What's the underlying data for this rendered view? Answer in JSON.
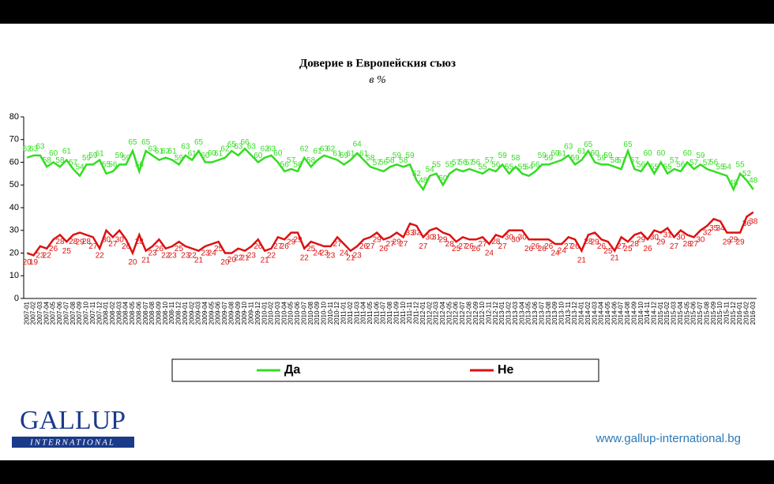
{
  "chart_data": {
    "type": "line",
    "title": "Доверие в Европейския съюз",
    "subtitle": "в %",
    "categories": [
      "2007-01",
      "2007-02",
      "2007-03",
      "2007-04",
      "2007-05",
      "2007-06",
      "2007-07",
      "2007-08",
      "2007-09",
      "2007-10",
      "2007-11",
      "2007-12",
      "2008-01",
      "2008-02",
      "2008-03",
      "2008-04",
      "2008-05",
      "2008-06",
      "2008-07",
      "2008-08",
      "2008-09",
      "2008-10",
      "2008-11",
      "2008-12",
      "2009-01",
      "2009-02",
      "2009-03",
      "2009-04",
      "2009-05",
      "2009-06",
      "2009-07",
      "2009-08",
      "2009-09",
      "2009-10",
      "2009-11",
      "2009-12",
      "2010-01",
      "2010-02",
      "2010-03",
      "2010-04",
      "2010-05",
      "2010-06",
      "2010-07",
      "2010-08",
      "2010-09",
      "2010-10",
      "2010-11",
      "2010-12",
      "2011-01",
      "2011-02",
      "2011-03",
      "2011-04",
      "2011-05",
      "2011-06",
      "2011-07",
      "2011-08",
      "2011-09",
      "2011-10",
      "2011-11",
      "2011-12",
      "2012-01",
      "2012-02",
      "2012-03",
      "2012-04",
      "2012-05",
      "2012-06",
      "2012-07",
      "2012-08",
      "2012-09",
      "2012-10",
      "2012-11",
      "2012-12",
      "2013-01",
      "2013-02",
      "2013-03",
      "2013-04",
      "2013-05",
      "2013-06",
      "2013-07",
      "2013-08",
      "2013-09",
      "2013-10",
      "2013-11",
      "2013-12",
      "2014-01",
      "2014-02",
      "2014-03",
      "2014-04",
      "2014-05",
      "2014-06",
      "2014-07",
      "2014-08",
      "2014-09",
      "2014-10",
      "2014-11",
      "2014-12",
      "2015-01",
      "2015-02",
      "2015-03",
      "2015-04",
      "2015-05",
      "2015-06",
      "2015-07",
      "2015-08",
      "2015-09",
      "2015-10",
      "2015-11",
      "2015-12",
      "2016-01",
      "2016-02",
      "2016-03"
    ],
    "series": [
      {
        "name": "Да",
        "color": "#33dd22",
        "values": [
          62,
          63,
          63,
          58,
          60,
          58,
          61,
          57,
          54,
          59,
          59,
          61,
          55,
          56,
          59,
          59,
          65,
          56,
          65,
          63,
          61,
          62,
          61,
          59,
          63,
          61,
          65,
          60,
          60,
          61,
          62,
          65,
          63,
          66,
          63,
          60,
          62,
          63,
          60,
          56,
          57,
          56,
          62,
          58,
          61,
          63,
          62,
          61,
          59,
          61,
          64,
          61,
          58,
          57,
          56,
          58,
          59,
          58,
          59,
          52,
          48,
          54,
          55,
          50,
          55,
          57,
          56,
          57,
          56,
          55,
          57,
          56,
          59,
          55,
          58,
          55,
          54,
          56,
          59,
          59,
          60,
          61,
          63,
          59,
          61,
          65,
          60,
          59,
          59,
          58,
          57,
          65,
          57,
          56,
          60,
          55,
          60,
          55,
          57,
          56,
          60,
          57,
          59,
          57,
          56,
          55,
          54,
          48,
          55,
          52,
          48
        ]
      },
      {
        "name": "Не",
        "color": "#dd1111",
        "values": [
          20,
          19,
          23,
          22,
          26,
          28,
          25,
          28,
          29,
          28,
          27,
          22,
          30,
          27,
          30,
          26,
          20,
          28,
          21,
          23,
          26,
          22,
          23,
          25,
          23,
          22,
          21,
          23,
          24,
          25,
          20,
          20,
          22,
          21,
          23,
          26,
          21,
          22,
          27,
          26,
          29,
          29,
          22,
          25,
          24,
          23,
          23,
          27,
          24,
          21,
          23,
          26,
          27,
          29,
          26,
          27,
          29,
          27,
          33,
          32,
          27,
          30,
          31,
          29,
          28,
          25,
          27,
          26,
          26,
          27,
          24,
          28,
          27,
          30,
          30,
          30,
          26,
          26,
          26,
          26,
          24,
          24,
          27,
          26,
          21,
          28,
          29,
          26,
          25,
          21,
          27,
          25,
          28,
          29,
          26,
          30,
          29,
          31,
          27,
          30,
          28,
          27,
          30,
          32,
          35,
          34,
          29,
          29,
          29,
          36,
          38
        ]
      }
    ],
    "ylim": [
      0,
      80
    ],
    "yticks": [
      0,
      10,
      20,
      30,
      40,
      50,
      60,
      70,
      80
    ],
    "legend": "bottom"
  },
  "logo": {
    "name": "GALLUP",
    "sub": "INTERNATIONAL"
  },
  "footer": {
    "url": "www.gallup-international.bg"
  }
}
